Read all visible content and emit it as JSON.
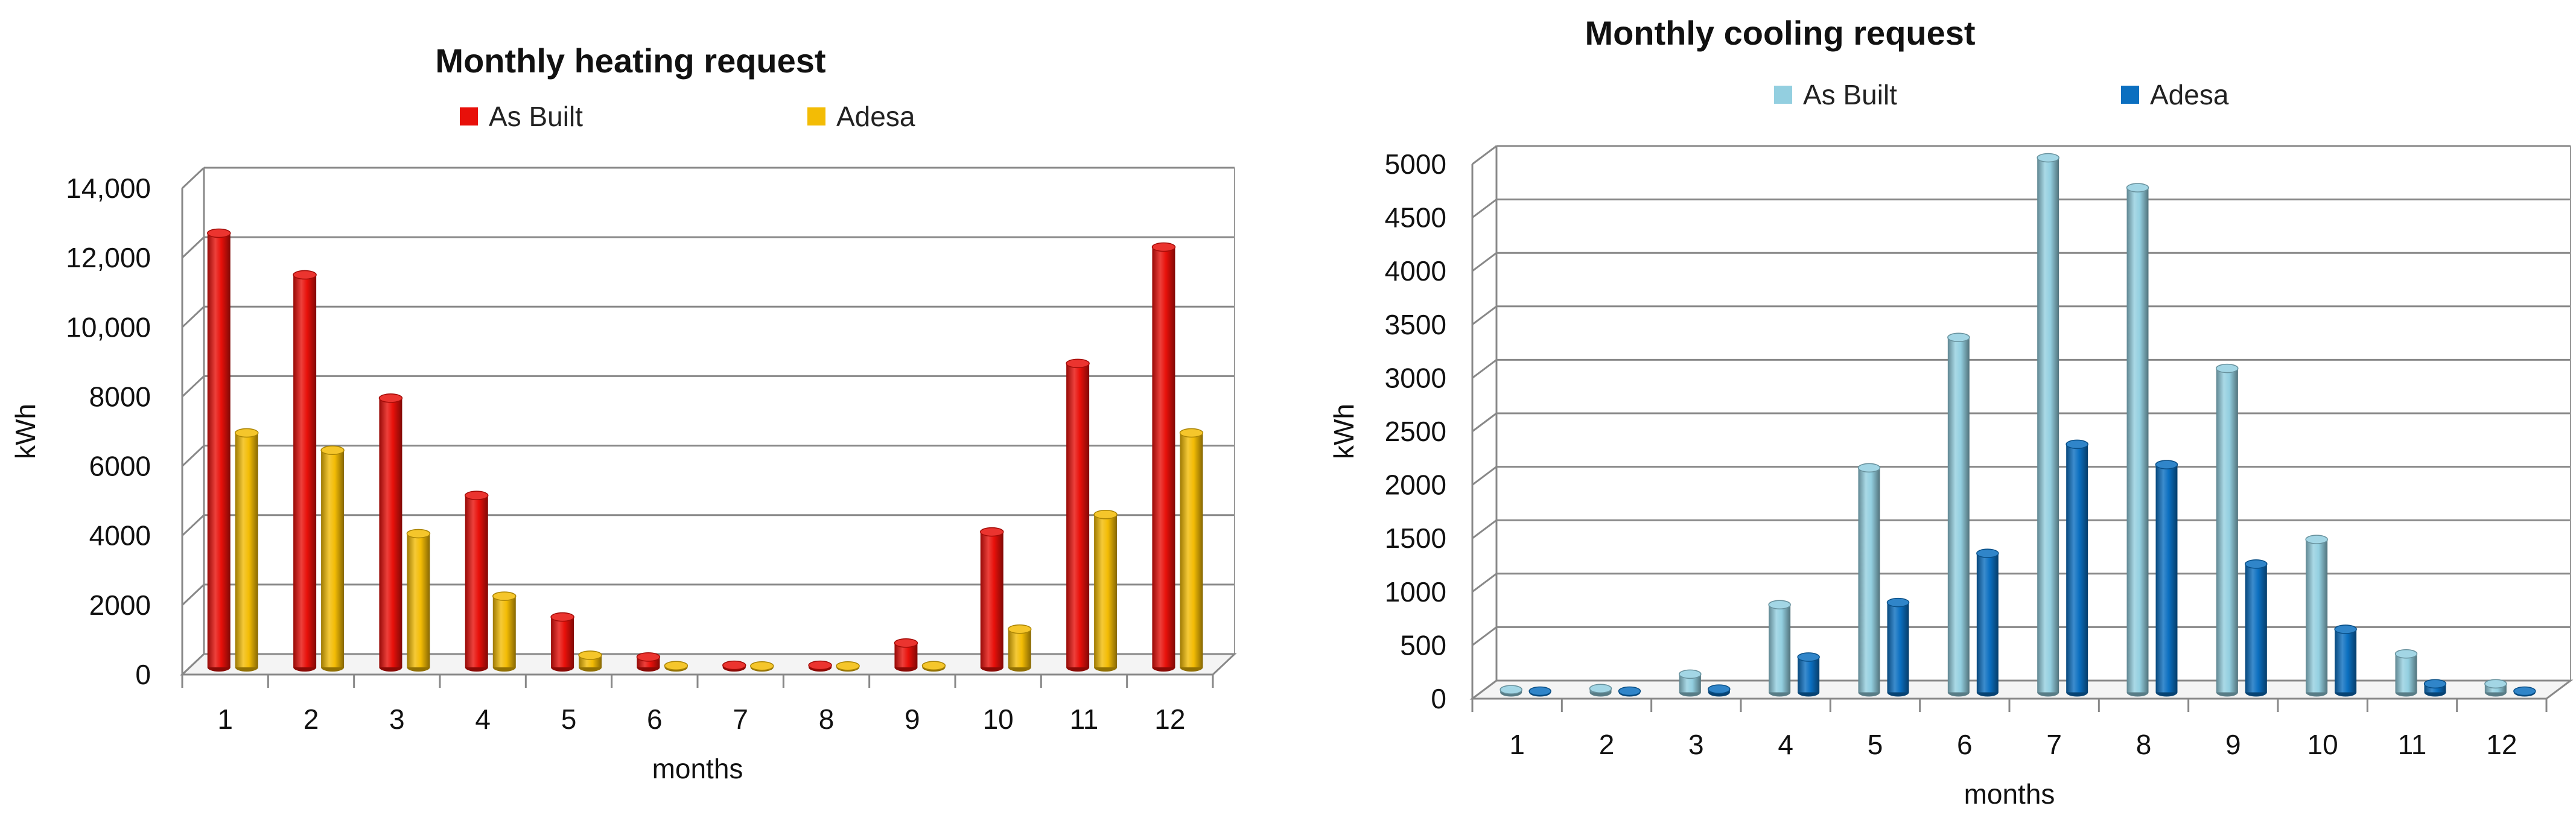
{
  "chart_data": [
    {
      "id": "heating",
      "type": "bar",
      "title": "Monthly heating request",
      "xlabel": "months",
      "ylabel": "kWh",
      "ylim": [
        0,
        14000
      ],
      "yticks": [
        0,
        2000,
        4000,
        6000,
        8000,
        10000,
        12000,
        14000
      ],
      "ytick_labels": [
        "0",
        "2000",
        "4000",
        "6000",
        "8000",
        "10,000",
        "12,000",
        "14,000"
      ],
      "categories": [
        "1",
        "2",
        "3",
        "4",
        "5",
        "6",
        "7",
        "8",
        "9",
        "10",
        "11",
        "12"
      ],
      "series": [
        {
          "name": "As Built",
          "color": "#e8100a",
          "values": [
            12500,
            11300,
            7750,
            4950,
            1450,
            300,
            60,
            60,
            700,
            3900,
            8750,
            12100
          ]
        },
        {
          "name": "Adesa",
          "color": "#f3bc05",
          "values": [
            6750,
            6250,
            3850,
            2050,
            350,
            50,
            40,
            40,
            50,
            1100,
            4400,
            6750
          ]
        }
      ],
      "legend_position": "top",
      "grid": true,
      "style": "3d-cylinder"
    },
    {
      "id": "cooling",
      "type": "bar",
      "title": "Monthly cooling request",
      "xlabel": "months",
      "ylabel": "kWh",
      "ylim": [
        0,
        5000
      ],
      "yticks": [
        0,
        500,
        1000,
        1500,
        2000,
        2500,
        3000,
        3500,
        4000,
        4500,
        5000
      ],
      "ytick_labels": [
        "0",
        "500",
        "1000",
        "1500",
        "2000",
        "2500",
        "3000",
        "3500",
        "4000",
        "4500",
        "5000"
      ],
      "categories": [
        "1",
        "2",
        "3",
        "4",
        "5",
        "6",
        "7",
        "8",
        "9",
        "10",
        "11",
        "12"
      ],
      "series": [
        {
          "name": "As Built",
          "color": "#93cfe0",
          "values": [
            25,
            35,
            170,
            820,
            2100,
            3320,
            5000,
            4720,
            3030,
            1430,
            360,
            80
          ]
        },
        {
          "name": "Adesa",
          "color": "#0b6fc0",
          "values": [
            5,
            5,
            30,
            330,
            840,
            1300,
            2320,
            2130,
            1200,
            590,
            80,
            5
          ]
        }
      ],
      "legend_position": "top",
      "grid": true,
      "style": "3d-cylinder"
    }
  ]
}
